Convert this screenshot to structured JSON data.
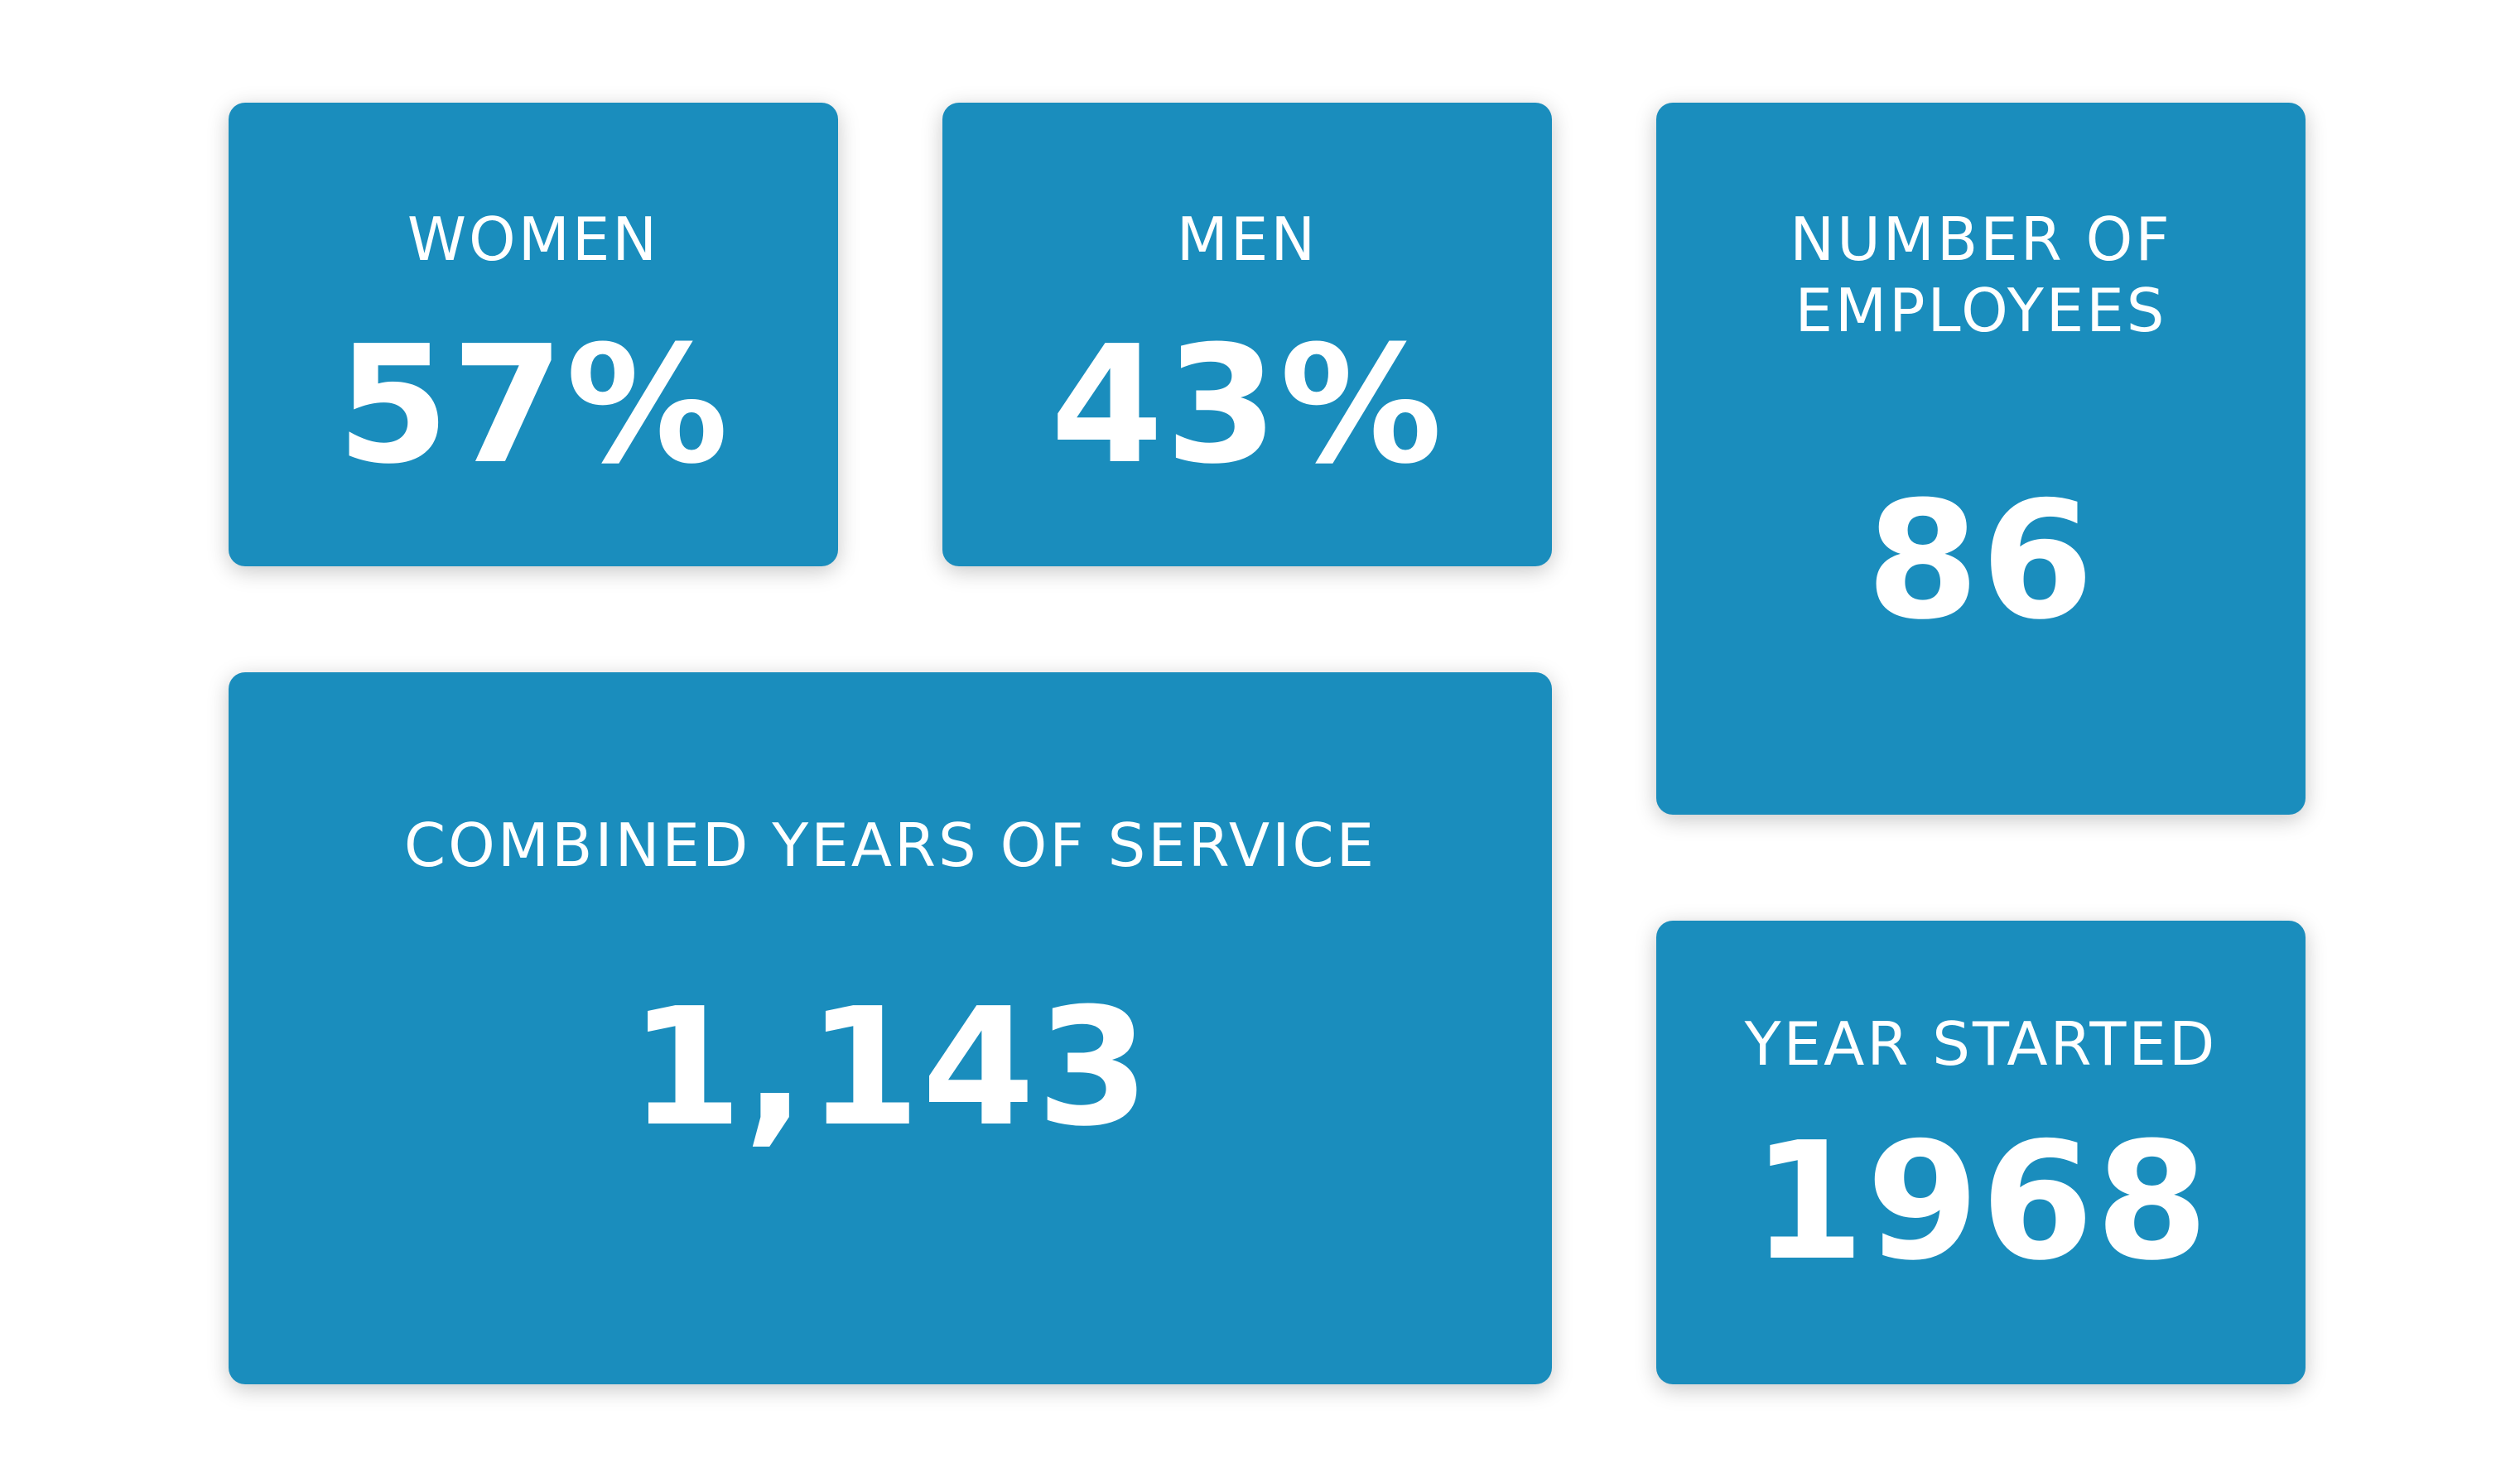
{
  "colors": {
    "card_background": "#1a8dbd",
    "text": "#ffffff",
    "page_background": "#ffffff"
  },
  "stats": {
    "women": {
      "label": "WOMEN",
      "value": "57%"
    },
    "men": {
      "label": "MEN",
      "value": "43%"
    },
    "employees": {
      "label_line1": "NUMBER OF",
      "label_line2": "EMPLOYEES",
      "value": "86"
    },
    "service": {
      "label": "COMBINED YEARS OF SERVICE",
      "value": "1,143"
    },
    "year_started": {
      "label": "YEAR STARTED",
      "value": "1968"
    }
  }
}
